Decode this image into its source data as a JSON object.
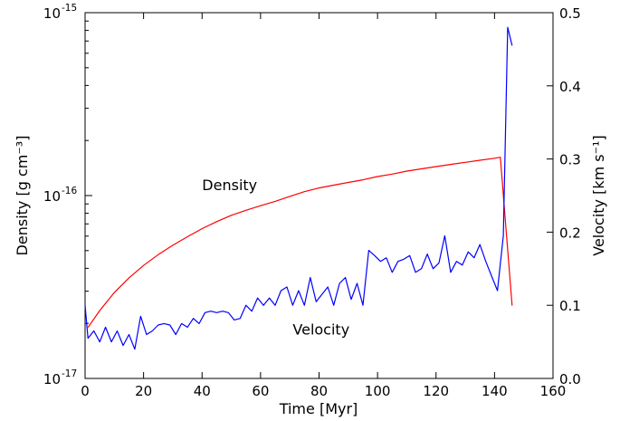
{
  "chart_data": {
    "type": "line",
    "x_label": "Time [Myr]",
    "y_left_label": "Density [g cm⁻³]",
    "y_right_label": "Velocity [km s⁻¹]",
    "xlim": [
      0,
      160
    ],
    "x_ticks": [
      0,
      20,
      40,
      60,
      80,
      100,
      120,
      140,
      160
    ],
    "x_tick_labels": [
      "0",
      "20",
      "40",
      "60",
      "80",
      "100",
      "120",
      "140",
      "160"
    ],
    "y_left_scale": "log",
    "y_left_lim": [
      1e-17,
      1e-15
    ],
    "y_left_ticks": [
      {
        "value": 1e-17,
        "base": "10",
        "exp": "-17"
      },
      {
        "value": 1e-16,
        "base": "10",
        "exp": "-16"
      },
      {
        "value": 1e-15,
        "base": "10",
        "exp": "-15"
      }
    ],
    "y_right_lim": [
      0.0,
      0.5
    ],
    "y_right_ticks": [
      0.0,
      0.1,
      0.2,
      0.3,
      0.4,
      0.5
    ],
    "y_right_tick_labels": [
      "0.0",
      "0.1",
      "0.2",
      "0.3",
      "0.4",
      "0.5"
    ],
    "annotations": [
      {
        "text": "Density",
        "x": 40,
        "y_axis": "left",
        "y": 1.07e-16
      },
      {
        "text": "Velocity",
        "x": 71,
        "y_axis": "right",
        "y": 0.06
      }
    ],
    "series": [
      {
        "axis": "left",
        "color": "#ff0000",
        "x": [
          1,
          5,
          10,
          15,
          20,
          25,
          30,
          35,
          40,
          45,
          50,
          55,
          60,
          65,
          70,
          75,
          80,
          85,
          90,
          95,
          100,
          105,
          110,
          115,
          120,
          125,
          130,
          135,
          140,
          142,
          146
        ],
        "y": [
          1.9e-17,
          2.35e-17,
          2.95e-17,
          3.55e-17,
          4.15e-17,
          4.75e-17,
          5.35e-17,
          5.95e-17,
          6.6e-17,
          7.2e-17,
          7.8e-17,
          8.3e-17,
          8.8e-17,
          9.3e-17,
          9.9e-17,
          1.05e-16,
          1.1e-16,
          1.14e-16,
          1.18e-16,
          1.22e-16,
          1.27e-16,
          1.31e-16,
          1.36e-16,
          1.4e-16,
          1.44e-16,
          1.48e-16,
          1.52e-16,
          1.56e-16,
          1.6e-16,
          1.62e-16,
          2.5e-17
        ]
      },
      {
        "axis": "right",
        "color": "#0000ff",
        "x": [
          0,
          1,
          3,
          5,
          7,
          9,
          11,
          13,
          15,
          17,
          19,
          21,
          23,
          25,
          27,
          29,
          31,
          33,
          35,
          37,
          39,
          41,
          43,
          45,
          47,
          49,
          51,
          53,
          55,
          57,
          59,
          61,
          63,
          65,
          67,
          69,
          71,
          73,
          75,
          77,
          79,
          81,
          83,
          85,
          87,
          89,
          91,
          93,
          95,
          97,
          99,
          101,
          103,
          105,
          107,
          109,
          111,
          113,
          115,
          117,
          119,
          121,
          123,
          125,
          127,
          129,
          131,
          133,
          135,
          137,
          139,
          141,
          143,
          144.5,
          146
        ],
        "y": [
          0.1,
          0.055,
          0.065,
          0.05,
          0.07,
          0.05,
          0.065,
          0.045,
          0.06,
          0.04,
          0.085,
          0.06,
          0.065,
          0.073,
          0.075,
          0.073,
          0.06,
          0.075,
          0.07,
          0.082,
          0.075,
          0.09,
          0.092,
          0.09,
          0.092,
          0.09,
          0.08,
          0.082,
          0.1,
          0.092,
          0.11,
          0.1,
          0.11,
          0.1,
          0.12,
          0.125,
          0.1,
          0.12,
          0.1,
          0.138,
          0.105,
          0.115,
          0.125,
          0.1,
          0.13,
          0.138,
          0.108,
          0.13,
          0.1,
          0.175,
          0.168,
          0.16,
          0.165,
          0.145,
          0.16,
          0.163,
          0.168,
          0.145,
          0.15,
          0.17,
          0.15,
          0.158,
          0.195,
          0.145,
          0.16,
          0.155,
          0.173,
          0.165,
          0.183,
          0.16,
          0.14,
          0.12,
          0.195,
          0.48,
          0.455
        ]
      }
    ]
  }
}
